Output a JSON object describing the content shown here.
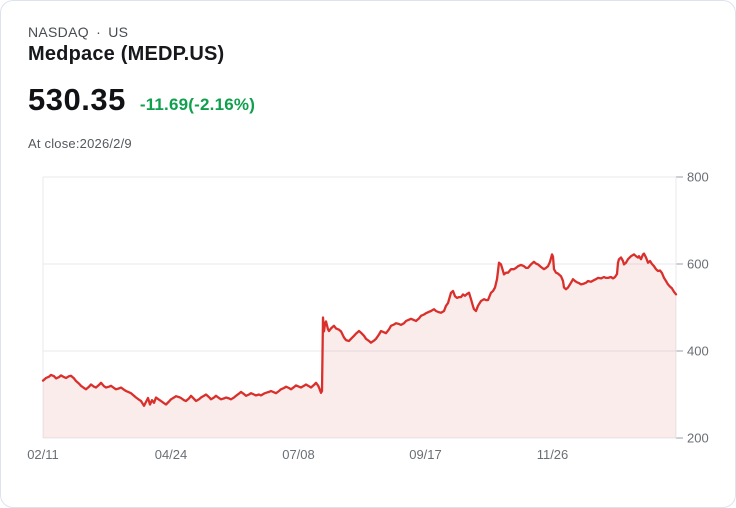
{
  "header": {
    "exchange_line": "NASDAQ · US",
    "title": "Medpace (MEDP.US)",
    "price": "530.35",
    "change": "-11.69(-2.16%)",
    "as_of": "At close:2026/2/9"
  },
  "colors": {
    "line": "#d9302c",
    "fill": "rgba(216,45,42,0.09)",
    "change_text": "#0fa04e",
    "grid": "#e8eaed",
    "tick": "#9aa0a6",
    "axis_text": "#6a6f75"
  },
  "chart_data": {
    "type": "area",
    "title": "Medpace (MEDP.US) 1-year daily price",
    "xlabel": "",
    "ylabel": "",
    "legend": [],
    "grid": "horizontal",
    "x_tick_labels": [
      "02/11",
      "04/24",
      "07/08",
      "09/17",
      "11/26"
    ],
    "x_tick_pos": [
      42,
      170,
      297.5,
      424.5,
      551.5
    ],
    "x_range": [
      42,
      675
    ],
    "y_ticks": [
      200,
      400,
      600,
      800
    ],
    "ylim": [
      200,
      800
    ],
    "last_value": 530.35,
    "points": [
      [
        42,
        332
      ],
      [
        45,
        338
      ],
      [
        48,
        341
      ],
      [
        50,
        345
      ],
      [
        53,
        342
      ],
      [
        55,
        337
      ],
      [
        58,
        340
      ],
      [
        60,
        344
      ],
      [
        63,
        340
      ],
      [
        65,
        338
      ],
      [
        68,
        342
      ],
      [
        70,
        343
      ],
      [
        73,
        337
      ],
      [
        75,
        331
      ],
      [
        78,
        325
      ],
      [
        80,
        320
      ],
      [
        83,
        315
      ],
      [
        85,
        312
      ],
      [
        88,
        318
      ],
      [
        90,
        323
      ],
      [
        93,
        318
      ],
      [
        95,
        316
      ],
      [
        98,
        322
      ],
      [
        100,
        327
      ],
      [
        103,
        319
      ],
      [
        105,
        316
      ],
      [
        108,
        318
      ],
      [
        110,
        320
      ],
      [
        113,
        315
      ],
      [
        115,
        312
      ],
      [
        118,
        314
      ],
      [
        120,
        316
      ],
      [
        123,
        311
      ],
      [
        125,
        308
      ],
      [
        128,
        305
      ],
      [
        130,
        303
      ],
      [
        133,
        297
      ],
      [
        135,
        293
      ],
      [
        138,
        288
      ],
      [
        140,
        285
      ],
      [
        143,
        274
      ],
      [
        145,
        283
      ],
      [
        147,
        292
      ],
      [
        149,
        277
      ],
      [
        151,
        287
      ],
      [
        153,
        281
      ],
      [
        155,
        293
      ],
      [
        158,
        288
      ],
      [
        160,
        285
      ],
      [
        163,
        280
      ],
      [
        165,
        277
      ],
      [
        168,
        284
      ],
      [
        170,
        289
      ],
      [
        173,
        293
      ],
      [
        175,
        296
      ],
      [
        178,
        294
      ],
      [
        180,
        292
      ],
      [
        183,
        287
      ],
      [
        185,
        285
      ],
      [
        188,
        291
      ],
      [
        190,
        297
      ],
      [
        193,
        290
      ],
      [
        195,
        285
      ],
      [
        198,
        289
      ],
      [
        200,
        293
      ],
      [
        203,
        297
      ],
      [
        205,
        300
      ],
      [
        208,
        294
      ],
      [
        210,
        289
      ],
      [
        213,
        293
      ],
      [
        215,
        297
      ],
      [
        218,
        292
      ],
      [
        220,
        289
      ],
      [
        223,
        291
      ],
      [
        225,
        293
      ],
      [
        228,
        291
      ],
      [
        230,
        289
      ],
      [
        233,
        293
      ],
      [
        235,
        297
      ],
      [
        238,
        302
      ],
      [
        240,
        306
      ],
      [
        243,
        301
      ],
      [
        245,
        297
      ],
      [
        248,
        300
      ],
      [
        250,
        303
      ],
      [
        253,
        300
      ],
      [
        255,
        298
      ],
      [
        258,
        300
      ],
      [
        260,
        298
      ],
      [
        263,
        302
      ],
      [
        265,
        304
      ],
      [
        268,
        306
      ],
      [
        270,
        308
      ],
      [
        273,
        305
      ],
      [
        275,
        303
      ],
      [
        278,
        308
      ],
      [
        280,
        312
      ],
      [
        283,
        315
      ],
      [
        285,
        318
      ],
      [
        288,
        315
      ],
      [
        290,
        312
      ],
      [
        293,
        317
      ],
      [
        295,
        321
      ],
      [
        298,
        318
      ],
      [
        300,
        316
      ],
      [
        303,
        320
      ],
      [
        305,
        323
      ],
      [
        308,
        319
      ],
      [
        310,
        316
      ],
      [
        313,
        322
      ],
      [
        315,
        327
      ],
      [
        317,
        321
      ],
      [
        318,
        316
      ],
      [
        320,
        304
      ],
      [
        321,
        308
      ],
      [
        322,
        477
      ],
      [
        323,
        445
      ],
      [
        324,
        462
      ],
      [
        325,
        468
      ],
      [
        327,
        450
      ],
      [
        328,
        446
      ],
      [
        330,
        452
      ],
      [
        333,
        458
      ],
      [
        335,
        452
      ],
      [
        338,
        449
      ],
      [
        340,
        445
      ],
      [
        343,
        431
      ],
      [
        345,
        425
      ],
      [
        348,
        423
      ],
      [
        350,
        428
      ],
      [
        353,
        435
      ],
      [
        355,
        440
      ],
      [
        358,
        446
      ],
      [
        360,
        442
      ],
      [
        363,
        435
      ],
      [
        365,
        428
      ],
      [
        368,
        423
      ],
      [
        370,
        419
      ],
      [
        373,
        424
      ],
      [
        375,
        428
      ],
      [
        378,
        438
      ],
      [
        380,
        446
      ],
      [
        383,
        443
      ],
      [
        385,
        441
      ],
      [
        388,
        450
      ],
      [
        390,
        458
      ],
      [
        393,
        461
      ],
      [
        395,
        464
      ],
      [
        398,
        462
      ],
      [
        400,
        460
      ],
      [
        403,
        464
      ],
      [
        405,
        469
      ],
      [
        408,
        472
      ],
      [
        410,
        474
      ],
      [
        413,
        471
      ],
      [
        415,
        469
      ],
      [
        418,
        475
      ],
      [
        420,
        481
      ],
      [
        423,
        484
      ],
      [
        425,
        487
      ],
      [
        428,
        490
      ],
      [
        430,
        492
      ],
      [
        433,
        496
      ],
      [
        435,
        492
      ],
      [
        438,
        489
      ],
      [
        440,
        488
      ],
      [
        443,
        492
      ],
      [
        445,
        504
      ],
      [
        447,
        510
      ],
      [
        450,
        534
      ],
      [
        452,
        538
      ],
      [
        454,
        526
      ],
      [
        456,
        522
      ],
      [
        458,
        524
      ],
      [
        460,
        524
      ],
      [
        462,
        530
      ],
      [
        464,
        527
      ],
      [
        466,
        531
      ],
      [
        468,
        534
      ],
      [
        470,
        519
      ],
      [
        472,
        503
      ],
      [
        473,
        496
      ],
      [
        475,
        492
      ],
      [
        477,
        504
      ],
      [
        480,
        515
      ],
      [
        483,
        519
      ],
      [
        485,
        517
      ],
      [
        487,
        517
      ],
      [
        490,
        534
      ],
      [
        492,
        538
      ],
      [
        494,
        546
      ],
      [
        496,
        565
      ],
      [
        497,
        584
      ],
      [
        498,
        603
      ],
      [
        500,
        599
      ],
      [
        502,
        584
      ],
      [
        503,
        576
      ],
      [
        505,
        580
      ],
      [
        507,
        580
      ],
      [
        510,
        588
      ],
      [
        513,
        588
      ],
      [
        515,
        591
      ],
      [
        517,
        595
      ],
      [
        520,
        598
      ],
      [
        523,
        595
      ],
      [
        525,
        591
      ],
      [
        527,
        591
      ],
      [
        530,
        599
      ],
      [
        533,
        605
      ],
      [
        535,
        601
      ],
      [
        537,
        599
      ],
      [
        540,
        593
      ],
      [
        543,
        588
      ],
      [
        545,
        591
      ],
      [
        547,
        595
      ],
      [
        549,
        605
      ],
      [
        551,
        622
      ],
      [
        552,
        617
      ],
      [
        553,
        588
      ],
      [
        555,
        580
      ],
      [
        557,
        578
      ],
      [
        560,
        572
      ],
      [
        562,
        561
      ],
      [
        563,
        546
      ],
      [
        565,
        542
      ],
      [
        567,
        546
      ],
      [
        570,
        557
      ],
      [
        572,
        565
      ],
      [
        574,
        561
      ],
      [
        576,
        558
      ],
      [
        578,
        556
      ],
      [
        580,
        553
      ],
      [
        583,
        555
      ],
      [
        585,
        557
      ],
      [
        587,
        561
      ],
      [
        590,
        559
      ],
      [
        593,
        563
      ],
      [
        595,
        565
      ],
      [
        597,
        568
      ],
      [
        600,
        567
      ],
      [
        603,
        570
      ],
      [
        605,
        568
      ],
      [
        607,
        568
      ],
      [
        610,
        570
      ],
      [
        612,
        567
      ],
      [
        614,
        570
      ],
      [
        616,
        577
      ],
      [
        617,
        603
      ],
      [
        618,
        611
      ],
      [
        620,
        615
      ],
      [
        622,
        607
      ],
      [
        623,
        599
      ],
      [
        625,
        603
      ],
      [
        627,
        611
      ],
      [
        630,
        618
      ],
      [
        633,
        622
      ],
      [
        635,
        618
      ],
      [
        637,
        615
      ],
      [
        638,
        618
      ],
      [
        640,
        611
      ],
      [
        642,
        622
      ],
      [
        643,
        624
      ],
      [
        645,
        615
      ],
      [
        647,
        603
      ],
      [
        649,
        607
      ],
      [
        651,
        600
      ],
      [
        653,
        595
      ],
      [
        655,
        588
      ],
      [
        657,
        584
      ],
      [
        659,
        585
      ],
      [
        661,
        579
      ],
      [
        663,
        568
      ],
      [
        665,
        561
      ],
      [
        667,
        553
      ],
      [
        669,
        548
      ],
      [
        671,
        544
      ],
      [
        673,
        536
      ],
      [
        675,
        530.35
      ]
    ]
  }
}
